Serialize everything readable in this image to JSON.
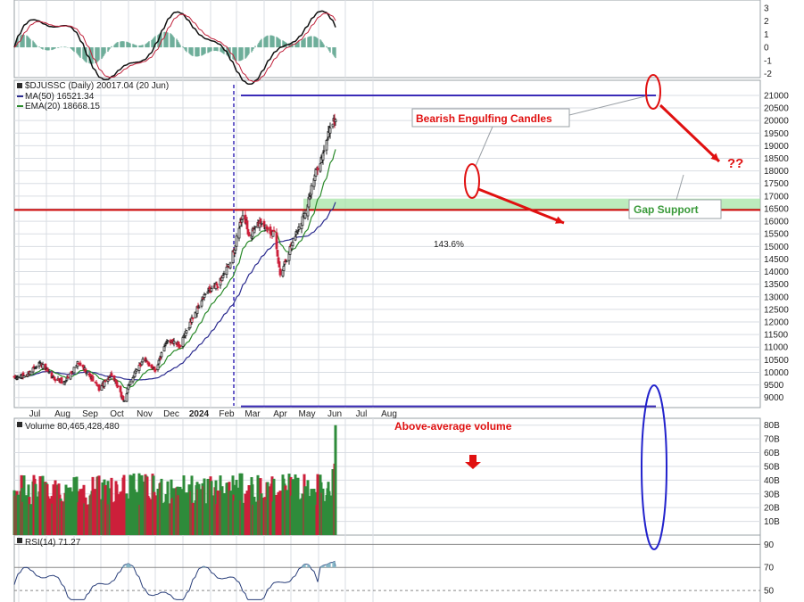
{
  "colors": {
    "up": "#2e8b3a",
    "down": "#cc1f3a",
    "ma50": "#2b2b8f",
    "ema20": "#2a8a2a",
    "grid": "#d9dde3",
    "annotation": "#e01010",
    "gap_fill": "#9fe39f",
    "support_line": "#cc0000",
    "range_line": "#3a2bb8",
    "ellipse_blue": "#2222cc",
    "rsi_fill": "#86b8c8"
  },
  "chart_data": [
    {
      "type": "line",
      "panel": "momentum oscillator",
      "ytick_labels": [
        "3",
        "2",
        "1",
        "0",
        "-1",
        "-2"
      ],
      "ylim": [
        -2.3,
        3.6
      ]
    },
    {
      "type": "candlestick",
      "panel": "price",
      "legend": {
        "symbol": "$DJUSSC (Daily) 20017.04 (20 Jun)",
        "ma50": "MA(50) 16521.34",
        "ema20": "EMA(20) 18668.15"
      },
      "ytick_labels": [
        "21000",
        "20500",
        "20000",
        "19500",
        "19000",
        "18500",
        "18000",
        "17500",
        "17000",
        "16500",
        "16000",
        "15500",
        "15000",
        "14500",
        "14000",
        "13500",
        "13000",
        "12500",
        "12000",
        "11500",
        "11000",
        "10500",
        "10000",
        "9500",
        "9000"
      ],
      "ylim": [
        8600,
        21600
      ],
      "xtick_labels": [
        "Jul",
        "Aug",
        "Sep",
        "Oct",
        "Nov",
        "Dec",
        "2024",
        "Feb",
        "Mar",
        "Apr",
        "May",
        "Jun",
        "Jul",
        "Aug"
      ],
      "series_anchor_closes": [
        {
          "date": "2023-06-26",
          "close": 9750
        },
        {
          "date": "2023-07-10",
          "close": 9900
        },
        {
          "date": "2023-07-24",
          "close": 10400
        },
        {
          "date": "2023-08-07",
          "close": 9800
        },
        {
          "date": "2023-08-21",
          "close": 9600
        },
        {
          "date": "2023-09-05",
          "close": 10350
        },
        {
          "date": "2023-09-15",
          "close": 10050
        },
        {
          "date": "2023-09-29",
          "close": 9350
        },
        {
          "date": "2023-10-13",
          "close": 9900
        },
        {
          "date": "2023-10-27",
          "close": 8850
        },
        {
          "date": "2023-11-03",
          "close": 9650
        },
        {
          "date": "2023-11-17",
          "close": 10500
        },
        {
          "date": "2023-12-01",
          "close": 10100
        },
        {
          "date": "2023-12-15",
          "close": 11300
        },
        {
          "date": "2023-12-29",
          "close": 11050
        },
        {
          "date": "2024-01-12",
          "close": 12200
        },
        {
          "date": "2024-01-26",
          "close": 13100
        },
        {
          "date": "2024-02-09",
          "close": 13500
        },
        {
          "date": "2024-02-23",
          "close": 14300
        },
        {
          "date": "2024-03-08",
          "close": 16300
        },
        {
          "date": "2024-03-15",
          "close": 15400
        },
        {
          "date": "2024-03-28",
          "close": 16000
        },
        {
          "date": "2024-04-12",
          "close": 15500
        },
        {
          "date": "2024-04-19",
          "close": 13900
        },
        {
          "date": "2024-05-03",
          "close": 15200
        },
        {
          "date": "2024-05-17",
          "close": 16400
        },
        {
          "date": "2024-05-31",
          "close": 18200
        },
        {
          "date": "2024-06-07",
          "close": 18700
        },
        {
          "date": "2024-06-14",
          "close": 19800
        },
        {
          "date": "2024-06-20",
          "close": 20017
        }
      ],
      "horizontal_lines": [
        {
          "value": 16450,
          "label": ""
        },
        {
          "value": 21000,
          "label": ""
        },
        {
          "value": 8650,
          "label": ""
        }
      ],
      "gap_band": [
        16450,
        16900
      ],
      "annotations": {
        "bearish": "Bearish Engulfing Candles",
        "gap_support": "Gap Support",
        "question": "??",
        "pct_change": "143.6%"
      }
    },
    {
      "type": "bar",
      "panel": "volume",
      "legend": "Volume 80,465,428,480",
      "ytick_labels": [
        "80B",
        "70B",
        "60B",
        "50B",
        "40B",
        "30B",
        "20B",
        "10B"
      ],
      "ylim": [
        0,
        85
      ],
      "typical_range": [
        22,
        45
      ],
      "last_values_B": [
        48,
        40,
        52,
        80
      ],
      "annotation": "Above-average volume"
    },
    {
      "type": "line",
      "panel": "rsi",
      "legend": "RSI(14) 71.27",
      "ytick_labels": [
        "90",
        "70",
        "50"
      ],
      "ylim": [
        40,
        98
      ],
      "last_value": 71.27
    }
  ]
}
